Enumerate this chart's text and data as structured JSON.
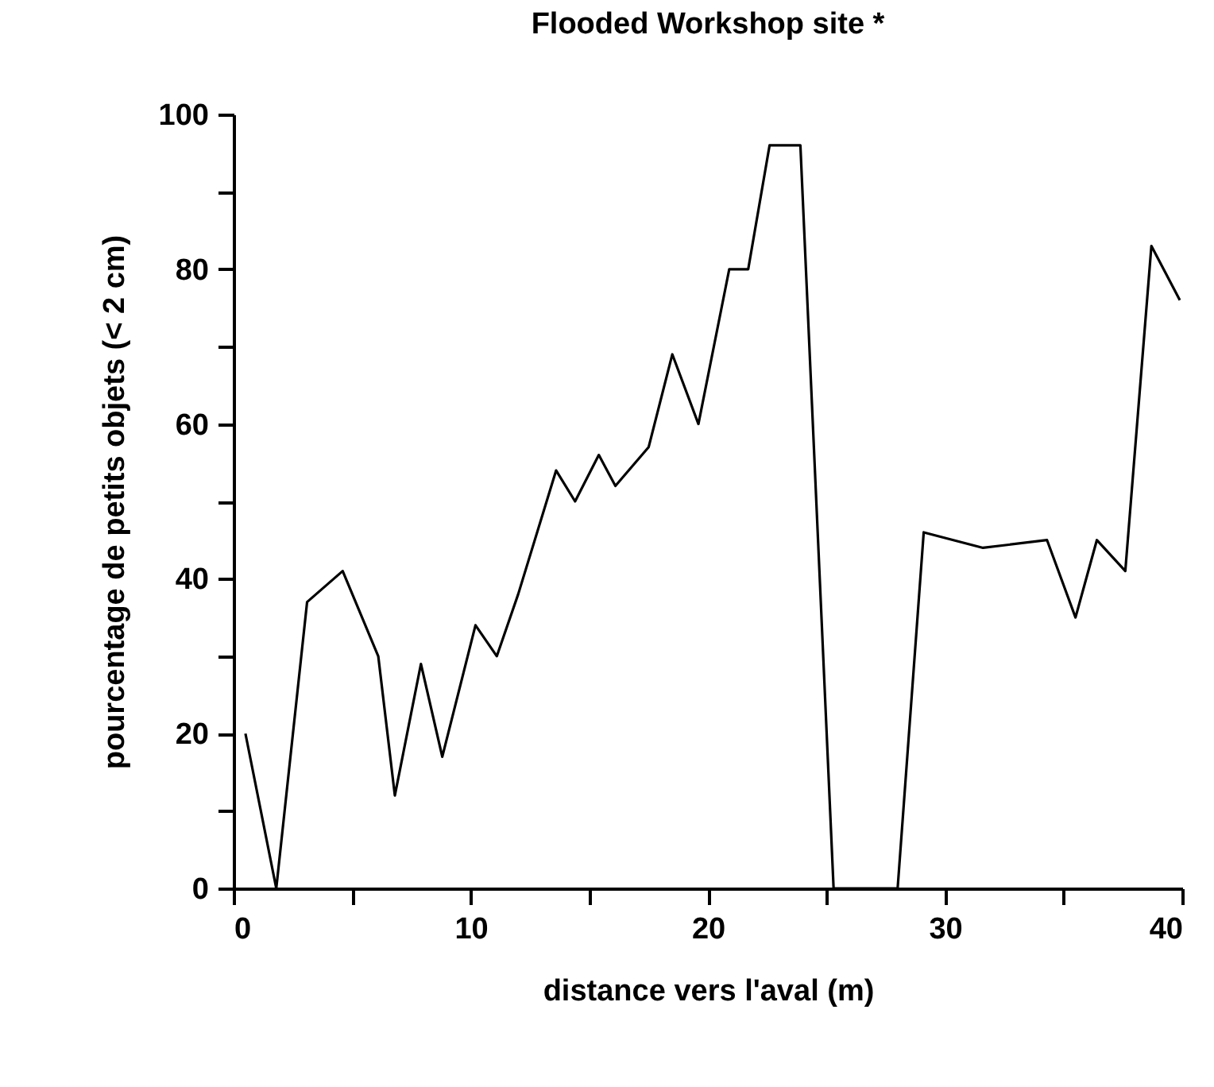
{
  "chart_data": {
    "type": "line",
    "title": "Flooded Workshop site *",
    "xlabel": "distance vers l'aval (m)",
    "ylabel": "pourcentage de petits objets (< 2 cm)",
    "x": [
      0.5,
      1.8,
      3.1,
      4.6,
      6.1,
      6.8,
      7.9,
      8.8,
      10.2,
      11.1,
      12.0,
      13.6,
      14.4,
      15.4,
      16.1,
      17.5,
      18.5,
      19.6,
      20.9,
      21.7,
      22.6,
      23.9,
      25.3,
      28.0,
      29.1,
      31.6,
      34.3,
      35.5,
      36.4,
      37.6,
      38.7,
      39.9
    ],
    "series": [
      {
        "color": "#000000",
        "values": [
          20,
          0,
          37,
          41,
          30,
          12,
          29,
          17,
          34,
          30,
          38,
          54,
          50,
          56,
          52,
          57,
          69,
          60,
          80,
          80,
          96,
          96,
          0,
          0,
          46,
          44,
          45,
          35,
          45,
          41,
          83,
          76
        ]
      }
    ],
    "xlim": [
      0,
      40
    ],
    "xticks": [
      0,
      {
        "value": 5,
        "label": null
      },
      10,
      {
        "value": 15,
        "label": null
      },
      20,
      {
        "value": 25,
        "label": null
      },
      30,
      {
        "value": 35,
        "label": null
      },
      40
    ],
    "ylim": [
      0,
      100
    ],
    "yticks": [
      0,
      {
        "value": 10,
        "label": null
      },
      20,
      {
        "value": 30,
        "label": null
      },
      40,
      {
        "value": 50,
        "label": null
      },
      60,
      {
        "value": 70,
        "label": null
      },
      80,
      {
        "value": 90,
        "label": null
      },
      100
    ],
    "grid": false,
    "marker": "none",
    "line_style": "solid"
  }
}
